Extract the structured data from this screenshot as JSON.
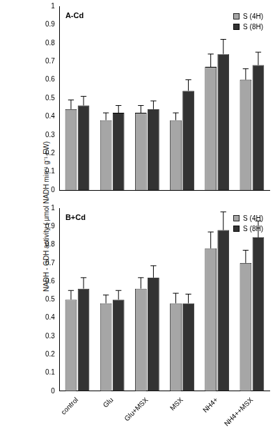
{
  "y_label": "NADH - GDH activity ( µmol NADH min⁻¹ g⁻¹ FW)",
  "chart_data": [
    {
      "type": "bar",
      "title": "A-Cd",
      "categories": [
        "control",
        "Glu",
        "Glu+MSX",
        "MSX",
        "NH4+",
        "NH4++MSX"
      ],
      "series": [
        {
          "name": "S (4H)",
          "color": "#a6a6a6",
          "values": [
            0.44,
            0.38,
            0.42,
            0.38,
            0.67,
            0.6
          ],
          "errors": [
            0.05,
            0.04,
            0.04,
            0.04,
            0.07,
            0.06
          ]
        },
        {
          "name": "S (8H)",
          "color": "#333333",
          "values": [
            0.46,
            0.42,
            0.44,
            0.54,
            0.74,
            0.68
          ],
          "errors": [
            0.05,
            0.04,
            0.045,
            0.06,
            0.08,
            0.07
          ]
        }
      ],
      "ylim": [
        0,
        1
      ],
      "yticks": [
        0,
        0.1,
        0.2,
        0.3,
        0.4,
        0.5,
        0.6,
        0.7,
        0.8,
        0.9,
        1
      ],
      "grid": false,
      "legend": "upper right",
      "tick_labels": "y"
    },
    {
      "type": "bar",
      "title": "B+Cd",
      "categories": [
        "control",
        "Glu",
        "Glu+MSX",
        "MSX",
        "NH4+",
        "NH4++MSX"
      ],
      "series": [
        {
          "name": "S (4H)",
          "color": "#a6a6a6",
          "values": [
            0.5,
            0.48,
            0.56,
            0.48,
            0.78,
            0.7
          ],
          "errors": [
            0.05,
            0.045,
            0.06,
            0.055,
            0.09,
            0.07
          ]
        },
        {
          "name": "S (8H)",
          "color": "#333333",
          "values": [
            0.56,
            0.5,
            0.62,
            0.48,
            0.88,
            0.84
          ],
          "errors": [
            0.06,
            0.05,
            0.065,
            0.05,
            0.1,
            0.09
          ]
        }
      ],
      "ylim": [
        0,
        1
      ],
      "yticks": [
        0,
        0.1,
        0.2,
        0.3,
        0.4,
        0.5,
        0.6,
        0.7,
        0.8,
        0.9,
        1
      ],
      "grid": false,
      "legend": "upper right"
    }
  ]
}
